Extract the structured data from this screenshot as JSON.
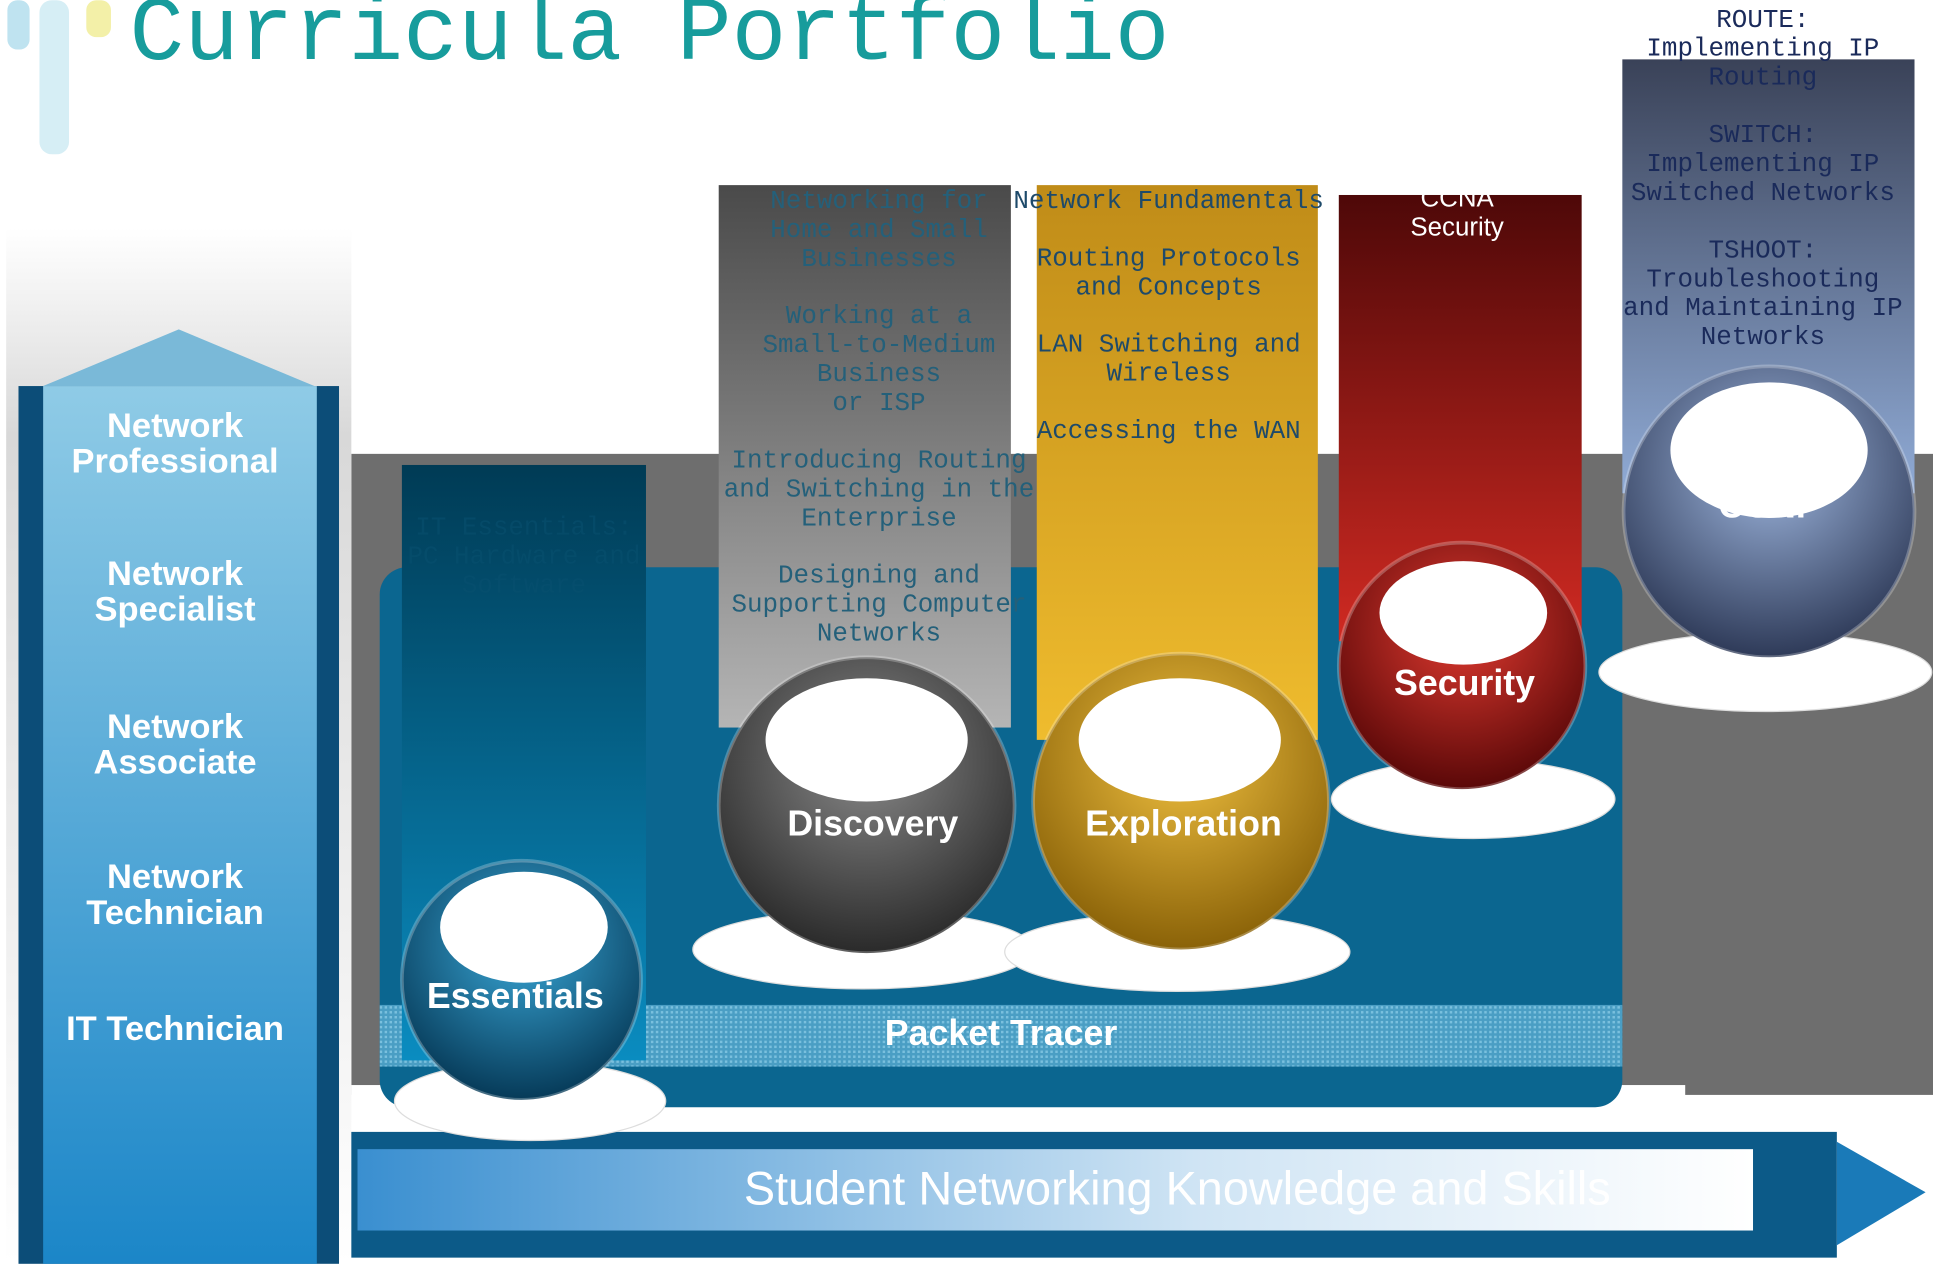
{
  "title": "Curricula Portfolio",
  "levels": [
    "Network Professional",
    "Network Specialist",
    "Network Associate",
    "Network Technician",
    "IT Technician"
  ],
  "tracks": [
    {
      "label": "Essentials",
      "courses": [
        [
          "IT Essentials:",
          "PC Hardware and",
          "Software"
        ]
      ]
    },
    {
      "label": "Discovery",
      "courses": [
        [
          "Networking for",
          "Home and Small",
          "Businesses"
        ],
        [
          "Working at a",
          "Small-to-Medium",
          "Business",
          "or ISP"
        ],
        [
          "Introducing Routing",
          "and Switching in the",
          "Enterprise"
        ],
        [
          "Designing and",
          "Supporting Computer",
          "Networks"
        ]
      ]
    },
    {
      "label": "Exploration",
      "courses": [
        [
          "Network Fundamentals"
        ],
        [
          "Routing Protocols",
          "and Concepts"
        ],
        [
          "LAN Switching and",
          "Wireless"
        ],
        [
          "Accessing the WAN"
        ]
      ]
    },
    {
      "label": "Security",
      "courses": [
        [
          "CCNA",
          "Security"
        ]
      ]
    },
    {
      "label": "CCNP",
      "courses": [
        [
          "ROUTE:",
          "Implementing  IP",
          "Routing"
        ],
        [
          "SWITCH:",
          "Implementing IP",
          "Switched Networks"
        ],
        [
          "TSHOOT:",
          "Troubleshooting",
          "and Maintaining IP",
          "Networks"
        ]
      ]
    }
  ],
  "packet_tracer": "Packet Tracer",
  "arrow_label": "Student Networking Knowledge and Skills"
}
